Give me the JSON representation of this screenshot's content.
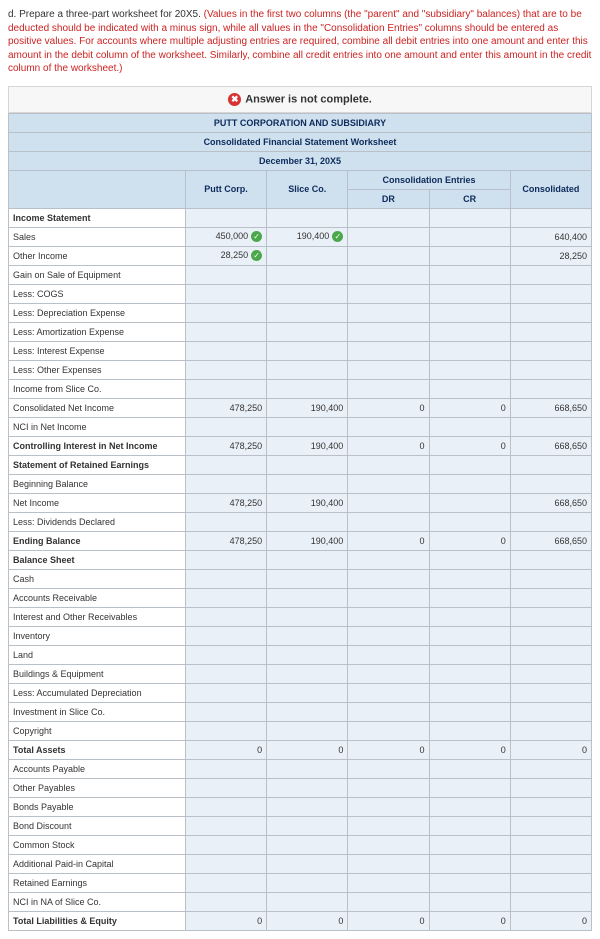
{
  "instructions": {
    "lead": "d. Prepare a three-part worksheet for 20X5. ",
    "red": "(Values in the first two columns (the \"parent\" and \"subsidiary\" balances) that are to be deducted should be indicated with a minus sign, while all values in the \"Consolidation Entries\" columns should be entered as positive values. For accounts where multiple adjusting entries are required, combine all debit entries into one amount and enter this amount in the debit column of the worksheet. Similarly, combine all credit entries into one amount and enter this amount in the credit column of the worksheet.)"
  },
  "incomplete": "Answer is not complete.",
  "headers": {
    "t1": "PUTT CORPORATION AND SUBSIDIARY",
    "t2": "Consolidated Financial Statement Worksheet",
    "t3": "December 31, 20X5",
    "consol_entries": "Consolidation Entries",
    "putt": "Putt Corp.",
    "slice": "Slice Co.",
    "dr": "DR",
    "cr": "CR",
    "consolidated": "Consolidated"
  },
  "rows": [
    {
      "label": "Income Statement",
      "bold": true
    },
    {
      "label": "Sales",
      "putt": "450,000",
      "putt_ok": true,
      "slice": "190,400",
      "slice_ok": true,
      "cons": "640,400"
    },
    {
      "label": "Other Income",
      "putt": "28,250",
      "putt_ok": true,
      "cons": "28,250"
    },
    {
      "label": "Gain on Sale of Equipment"
    },
    {
      "label": "Less: COGS"
    },
    {
      "label": "Less: Depreciation Expense"
    },
    {
      "label": "Less: Amortization Expense"
    },
    {
      "label": "Less: Interest Expense"
    },
    {
      "label": "Less: Other Expenses"
    },
    {
      "label": "Income from Slice Co."
    },
    {
      "label": "Consolidated Net Income",
      "putt": "478,250",
      "slice": "190,400",
      "dr": "0",
      "cr": "0",
      "cons": "668,650"
    },
    {
      "label": "NCI in Net Income"
    },
    {
      "label": "Controlling Interest in Net Income",
      "bold": true,
      "putt": "478,250",
      "slice": "190,400",
      "dr": "0",
      "cr": "0",
      "cons": "668,650"
    },
    {
      "label": "Statement of Retained Earnings",
      "bold": true
    },
    {
      "label": "Beginning Balance"
    },
    {
      "label": "Net Income",
      "putt": "478,250",
      "slice": "190,400",
      "cons": "668,650"
    },
    {
      "label": "Less: Dividends Declared"
    },
    {
      "label": "Ending Balance",
      "bold": true,
      "putt": "478,250",
      "slice": "190,400",
      "dr": "0",
      "cr": "0",
      "cons": "668,650"
    },
    {
      "label": "Balance Sheet",
      "bold": true
    },
    {
      "label": "Cash"
    },
    {
      "label": "Accounts Receivable"
    },
    {
      "label": "Interest and Other Receivables"
    },
    {
      "label": "Inventory"
    },
    {
      "label": "Land"
    },
    {
      "label": "Buildings & Equipment"
    },
    {
      "label": "Less: Accumulated Depreciation"
    },
    {
      "label": "Investment in Slice Co."
    },
    {
      "label": "Copyright"
    },
    {
      "label": "Total Assets",
      "bold": true,
      "putt": "0",
      "slice": "0",
      "dr": "0",
      "cr": "0",
      "cons": "0"
    },
    {
      "label": "Accounts Payable"
    },
    {
      "label": "Other Payables"
    },
    {
      "label": "Bonds Payable"
    },
    {
      "label": "Bond Discount"
    },
    {
      "label": "Common Stock"
    },
    {
      "label": "Additional Paid-in Capital"
    },
    {
      "label": "Retained Earnings"
    },
    {
      "label": "NCI in NA of Slice Co."
    },
    {
      "label": "Total Liabilities & Equity",
      "bold": true,
      "putt": "0",
      "slice": "0",
      "dr": "0",
      "cr": "0",
      "cons": "0"
    }
  ]
}
